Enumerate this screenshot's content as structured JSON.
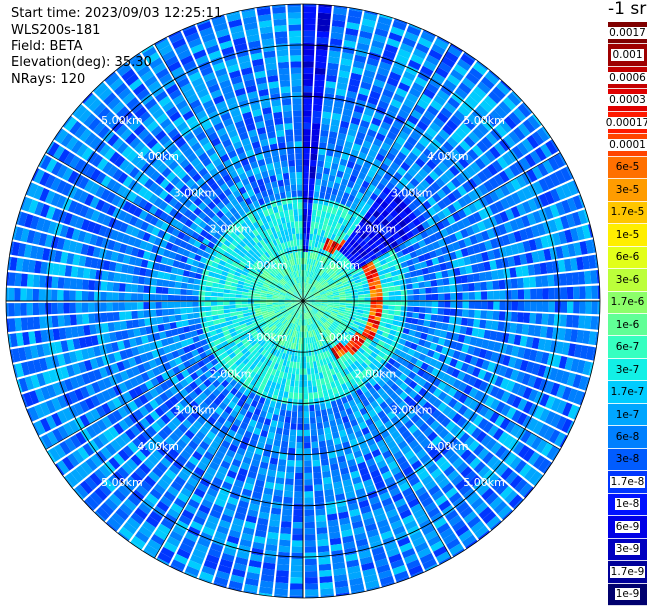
{
  "info": {
    "start_time": "Start time: 2023/09/03 12:25:11",
    "instrument": "WLS200s-181",
    "field": "Field: BETA",
    "elevation": "Elevation(deg): 35.30",
    "nrays": "NRays: 120"
  },
  "colorbar": {
    "unit": "-1 sr",
    "levels": [
      {
        "label": "0.0017",
        "color": "#7f0000"
      },
      {
        "label": "0.001",
        "color": "#9e0000"
      },
      {
        "label": "0.0006",
        "color": "#c40000"
      },
      {
        "label": "0.0003",
        "color": "#e00000"
      },
      {
        "label": "0.00017",
        "color": "#ff1a00"
      },
      {
        "label": "0.0001",
        "color": "#ff4400"
      },
      {
        "label": "6e-5",
        "color": "#ff7000"
      },
      {
        "label": "3e-5",
        "color": "#ff9c00"
      },
      {
        "label": "1.7e-5",
        "color": "#ffc600"
      },
      {
        "label": "1e-5",
        "color": "#ffee00"
      },
      {
        "label": "6e-6",
        "color": "#e2ff1a"
      },
      {
        "label": "3e-6",
        "color": "#bcff3a"
      },
      {
        "label": "1.7e-6",
        "color": "#8cff6a"
      },
      {
        "label": "1e-6",
        "color": "#60ff96"
      },
      {
        "label": "6e-7",
        "color": "#36ffc0"
      },
      {
        "label": "3e-7",
        "color": "#12f0e6"
      },
      {
        "label": "1.7e-7",
        "color": "#00ccff"
      },
      {
        "label": "1e-7",
        "color": "#00a6ff"
      },
      {
        "label": "6e-8",
        "color": "#0080ff"
      },
      {
        "label": "3e-8",
        "color": "#005cff"
      },
      {
        "label": "1.7e-8",
        "color": "#0036ff"
      },
      {
        "label": "1e-8",
        "color": "#0012ff"
      },
      {
        "label": "6e-9",
        "color": "#0000e6"
      },
      {
        "label": "3e-9",
        "color": "#0000c0"
      },
      {
        "label": "1.7e-9",
        "color": "#00009a"
      },
      {
        "label": "1e-9",
        "color": "#00006e"
      }
    ]
  },
  "chart_data": {
    "type": "heatmap",
    "projection": "polar-ppi",
    "nrays": 120,
    "range_rings_km": [
      1,
      2,
      3,
      4,
      5
    ],
    "ring_labels": [
      "1.00km",
      "2.00km",
      "3.00km",
      "4.00km",
      "5.00km"
    ],
    "max_range_km": 5.8,
    "spokes_deg": [
      0,
      30,
      60,
      90,
      120,
      150,
      180,
      210,
      240,
      270,
      300,
      330
    ],
    "background_level_index": 18,
    "near_field_level_index": 15,
    "features": [
      {
        "name": "high-beta-arc",
        "az_start_deg": 20,
        "az_end_deg": 150,
        "range_km_start": 1.1,
        "range_km_end": 1.6,
        "level_index": 2
      },
      {
        "name": "low-beta-gap-1",
        "az_start_deg": 0,
        "az_end_deg": 5,
        "range_km_start": 1.0,
        "range_km_end": 5.8,
        "level_index": 21
      },
      {
        "name": "low-beta-gap-2",
        "az_start_deg": 35,
        "az_end_deg": 60,
        "range_km_start": 1.2,
        "range_km_end": 2.8,
        "level_index": 21
      }
    ]
  }
}
